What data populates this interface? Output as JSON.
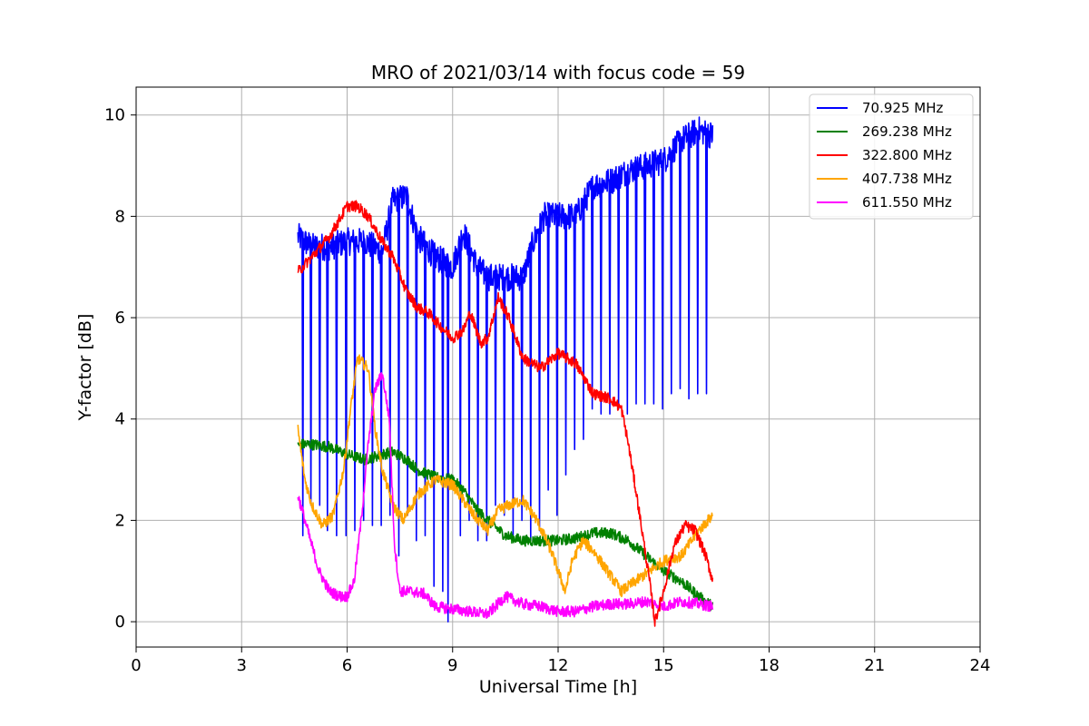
{
  "chart_data": {
    "type": "line",
    "title": "MRO of 2021/03/14 with focus code = 59",
    "xlabel": "Universal Time [h]",
    "ylabel": "Y-factor [dB]",
    "xlim": [
      0,
      24
    ],
    "ylim": [
      -0.5,
      10.55
    ],
    "xticks": [
      0,
      3,
      6,
      9,
      12,
      15,
      18,
      21,
      24
    ],
    "yticks": [
      0,
      2,
      4,
      6,
      8,
      10
    ],
    "grid": true,
    "legend_position": "top-right",
    "series": [
      {
        "name": "  70.925 MHz",
        "color": "#0000ff",
        "baseline": [
          [
            4.6,
            7.6
          ],
          [
            5.0,
            7.4
          ],
          [
            5.5,
            7.4
          ],
          [
            6.0,
            7.5
          ],
          [
            6.5,
            7.5
          ],
          [
            7.0,
            7.3
          ],
          [
            7.3,
            8.3
          ],
          [
            7.7,
            8.4
          ],
          [
            8.0,
            7.6
          ],
          [
            8.5,
            7.2
          ],
          [
            9.0,
            7.0
          ],
          [
            9.3,
            7.7
          ],
          [
            9.7,
            7.0
          ],
          [
            10.0,
            6.8
          ],
          [
            10.5,
            6.8
          ],
          [
            11.0,
            6.8
          ],
          [
            11.3,
            7.5
          ],
          [
            11.6,
            8.0
          ],
          [
            12.0,
            8.0
          ],
          [
            12.5,
            8.0
          ],
          [
            13.0,
            8.6
          ],
          [
            13.5,
            8.7
          ],
          [
            14.0,
            8.9
          ],
          [
            14.5,
            9.0
          ],
          [
            15.0,
            9.1
          ],
          [
            15.5,
            9.5
          ],
          [
            16.0,
            9.7
          ],
          [
            16.4,
            9.6
          ]
        ],
        "dips": [
          [
            4.72,
            1.7
          ],
          [
            4.95,
            2.3
          ],
          [
            5.2,
            2.3
          ],
          [
            5.42,
            1.8
          ],
          [
            5.68,
            1.7
          ],
          [
            5.95,
            1.7
          ],
          [
            6.2,
            1.8
          ],
          [
            6.45,
            2.0
          ],
          [
            6.7,
            1.9
          ],
          [
            6.95,
            1.9
          ],
          [
            7.2,
            2.1
          ],
          [
            7.45,
            1.3
          ],
          [
            7.7,
            2.1
          ],
          [
            7.95,
            1.6
          ],
          [
            8.2,
            1.7
          ],
          [
            8.45,
            0.7
          ],
          [
            8.7,
            0.6
          ],
          [
            8.85,
            0.0
          ],
          [
            9.2,
            1.7
          ],
          [
            9.45,
            2.0
          ],
          [
            9.7,
            1.6
          ],
          [
            9.95,
            1.6
          ],
          [
            10.2,
            2.3
          ],
          [
            10.45,
            2.1
          ],
          [
            10.7,
            1.7
          ],
          [
            10.95,
            2.0
          ],
          [
            11.2,
            1.6
          ],
          [
            11.45,
            1.8
          ],
          [
            11.7,
            2.6
          ],
          [
            11.95,
            2.1
          ],
          [
            12.2,
            2.9
          ],
          [
            12.45,
            3.4
          ],
          [
            12.7,
            3.6
          ],
          [
            12.95,
            4.2
          ],
          [
            13.2,
            4.1
          ],
          [
            13.45,
            4.1
          ],
          [
            13.7,
            4.2
          ],
          [
            13.95,
            4.1
          ],
          [
            14.2,
            4.3
          ],
          [
            14.45,
            4.3
          ],
          [
            14.7,
            4.3
          ],
          [
            14.95,
            4.2
          ],
          [
            15.2,
            4.5
          ],
          [
            15.45,
            4.6
          ],
          [
            15.7,
            4.4
          ],
          [
            15.95,
            4.5
          ],
          [
            16.2,
            4.5
          ],
          [
            16.4,
            4.4
          ]
        ]
      },
      {
        "name": "269.238 MHz",
        "color": "#008000",
        "points": [
          [
            4.6,
            3.5
          ],
          [
            5.0,
            3.5
          ],
          [
            5.5,
            3.45
          ],
          [
            6.0,
            3.3
          ],
          [
            6.5,
            3.2
          ],
          [
            7.0,
            3.3
          ],
          [
            7.3,
            3.35
          ],
          [
            7.7,
            3.2
          ],
          [
            8.0,
            3.0
          ],
          [
            8.5,
            2.85
          ],
          [
            9.0,
            2.8
          ],
          [
            9.3,
            2.6
          ],
          [
            9.7,
            2.2
          ],
          [
            10.0,
            2.0
          ],
          [
            10.5,
            1.7
          ],
          [
            11.0,
            1.6
          ],
          [
            11.5,
            1.6
          ],
          [
            12.0,
            1.6
          ],
          [
            12.5,
            1.65
          ],
          [
            13.0,
            1.75
          ],
          [
            13.5,
            1.75
          ],
          [
            14.0,
            1.6
          ],
          [
            14.5,
            1.3
          ],
          [
            15.0,
            1.0
          ],
          [
            15.5,
            0.8
          ],
          [
            16.0,
            0.5
          ],
          [
            16.4,
            0.3
          ]
        ]
      },
      {
        "name": "322.800 MHz",
        "color": "#ff0000",
        "points": [
          [
            4.6,
            6.9
          ],
          [
            5.0,
            7.2
          ],
          [
            5.5,
            7.6
          ],
          [
            6.0,
            8.2
          ],
          [
            6.3,
            8.2
          ],
          [
            6.6,
            8.0
          ],
          [
            7.0,
            7.5
          ],
          [
            7.3,
            7.2
          ],
          [
            7.7,
            6.5
          ],
          [
            8.0,
            6.2
          ],
          [
            8.3,
            6.1
          ],
          [
            8.7,
            5.8
          ],
          [
            9.0,
            5.6
          ],
          [
            9.3,
            5.75
          ],
          [
            9.5,
            6.1
          ],
          [
            9.8,
            5.5
          ],
          [
            10.0,
            5.6
          ],
          [
            10.3,
            6.4
          ],
          [
            10.6,
            6.0
          ],
          [
            11.0,
            5.2
          ],
          [
            11.5,
            5.0
          ],
          [
            12.0,
            5.3
          ],
          [
            12.5,
            5.1
          ],
          [
            13.0,
            4.5
          ],
          [
            13.5,
            4.4
          ],
          [
            13.8,
            4.2
          ],
          [
            14.0,
            3.5
          ],
          [
            14.3,
            2.2
          ],
          [
            14.6,
            0.8
          ],
          [
            14.75,
            0.0
          ],
          [
            15.0,
            0.6
          ],
          [
            15.3,
            1.5
          ],
          [
            15.6,
            1.9
          ],
          [
            15.9,
            1.8
          ],
          [
            16.2,
            1.3
          ],
          [
            16.4,
            0.8
          ]
        ]
      },
      {
        "name": "407.738 MHz",
        "color": "#ffa500",
        "points": [
          [
            4.6,
            3.8
          ],
          [
            4.8,
            2.8
          ],
          [
            5.0,
            2.3
          ],
          [
            5.3,
            1.9
          ],
          [
            5.6,
            2.1
          ],
          [
            5.9,
            3.0
          ],
          [
            6.1,
            4.2
          ],
          [
            6.3,
            5.2
          ],
          [
            6.6,
            5.0
          ],
          [
            6.8,
            3.8
          ],
          [
            7.0,
            3.0
          ],
          [
            7.3,
            2.3
          ],
          [
            7.6,
            2.0
          ],
          [
            8.0,
            2.5
          ],
          [
            8.5,
            2.8
          ],
          [
            9.0,
            2.7
          ],
          [
            9.3,
            2.4
          ],
          [
            9.6,
            2.1
          ],
          [
            10.0,
            1.8
          ],
          [
            10.3,
            2.2
          ],
          [
            10.6,
            2.3
          ],
          [
            11.0,
            2.4
          ],
          [
            11.4,
            2.0
          ],
          [
            11.8,
            1.4
          ],
          [
            12.0,
            1.0
          ],
          [
            12.2,
            0.6
          ],
          [
            12.4,
            1.2
          ],
          [
            12.7,
            1.6
          ],
          [
            13.0,
            1.4
          ],
          [
            13.4,
            1.0
          ],
          [
            13.8,
            0.6
          ],
          [
            14.2,
            0.8
          ],
          [
            14.6,
            1.0
          ],
          [
            15.0,
            1.2
          ],
          [
            15.5,
            1.3
          ],
          [
            16.0,
            1.8
          ],
          [
            16.4,
            2.1
          ]
        ]
      },
      {
        "name": "611.550 MHz",
        "color": "#ff00ff",
        "points": [
          [
            4.6,
            2.5
          ],
          [
            4.8,
            2.0
          ],
          [
            5.0,
            1.5
          ],
          [
            5.2,
            1.0
          ],
          [
            5.5,
            0.6
          ],
          [
            5.8,
            0.5
          ],
          [
            6.0,
            0.5
          ],
          [
            6.2,
            0.8
          ],
          [
            6.4,
            2.0
          ],
          [
            6.6,
            3.5
          ],
          [
            6.8,
            4.6
          ],
          [
            7.0,
            4.9
          ],
          [
            7.2,
            4.0
          ],
          [
            7.35,
            1.5
          ],
          [
            7.5,
            0.6
          ],
          [
            7.8,
            0.6
          ],
          [
            8.2,
            0.55
          ],
          [
            8.5,
            0.3
          ],
          [
            9.0,
            0.25
          ],
          [
            9.5,
            0.2
          ],
          [
            10.0,
            0.15
          ],
          [
            10.5,
            0.5
          ],
          [
            11.0,
            0.35
          ],
          [
            11.5,
            0.3
          ],
          [
            12.0,
            0.2
          ],
          [
            12.5,
            0.2
          ],
          [
            13.0,
            0.3
          ],
          [
            13.5,
            0.35
          ],
          [
            14.0,
            0.35
          ],
          [
            14.5,
            0.4
          ],
          [
            15.0,
            0.3
          ],
          [
            15.5,
            0.4
          ],
          [
            16.0,
            0.35
          ],
          [
            16.4,
            0.3
          ]
        ]
      }
    ]
  }
}
